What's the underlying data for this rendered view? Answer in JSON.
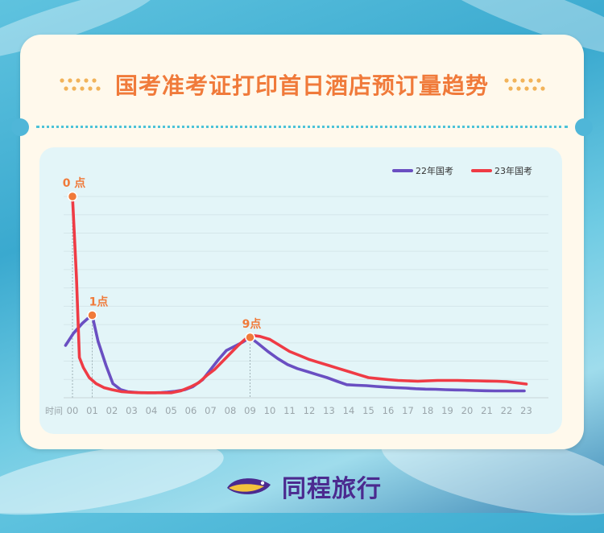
{
  "header": {
    "title": "国考准考证打印首日酒店预订量趋势"
  },
  "brand": {
    "name": "同程旅行"
  },
  "colors": {
    "series_22": "#6a4fc2",
    "series_23": "#ef3b45",
    "annotation": "#f07a3a",
    "title": "#f07a3a",
    "brand": "#4b2a8f"
  },
  "chart_data": {
    "type": "line",
    "title": "",
    "xlabel": "时间",
    "ylabel": "",
    "ylim": [
      0,
      100
    ],
    "grid": true,
    "legend_position": "top-right",
    "categories": [
      "00",
      "01",
      "02",
      "03",
      "04",
      "05",
      "06",
      "07",
      "08",
      "09",
      "10",
      "11",
      "12",
      "13",
      "14",
      "15",
      "16",
      "17",
      "18",
      "19",
      "20",
      "21",
      "22",
      "23"
    ],
    "x": [
      0,
      1,
      2,
      3,
      4,
      5,
      6,
      7,
      8,
      9,
      10,
      11,
      12,
      13,
      14,
      15,
      16,
      17,
      18,
      19,
      20,
      21,
      22,
      23
    ],
    "series": [
      {
        "name": "22年国考",
        "values": [
          25,
          37,
          6,
          2.5,
          2.5,
          3.5,
          5.5,
          16,
          25,
          29,
          21,
          15,
          12,
          8.5,
          6,
          5.5,
          5,
          4.5,
          4,
          3.8,
          3.5,
          3.2,
          3,
          3
        ],
        "fine_x": [
          -0.35,
          0.05,
          0.5,
          0.85,
          1,
          1.3,
          1.7,
          2.05,
          2.45,
          2.8,
          3.3,
          3.8,
          4.2,
          4.5,
          4.8,
          5.2,
          5.7,
          6.1,
          6.6,
          7,
          7.4,
          7.8,
          8.2,
          8.6,
          9,
          9.4,
          9.9,
          10.4,
          10.9,
          11.4,
          11.9,
          12.4,
          12.9,
          13.4,
          13.9,
          14.4,
          14.9,
          15.4,
          15.9,
          16.4,
          16.9,
          17.4,
          17.9,
          18.4,
          18.9,
          19.4,
          19.9,
          20.4,
          20.9,
          21.4,
          21.9,
          22.4,
          22.9
        ],
        "fine_y": [
          26,
          32,
          37,
          40,
          41,
          28,
          16,
          7,
          4,
          3,
          2.6,
          2.5,
          2.5,
          2.6,
          2.8,
          3.2,
          4,
          5.5,
          9,
          14,
          19,
          23.5,
          25.5,
          27.5,
          30,
          27,
          23,
          19.5,
          16.5,
          14.5,
          13,
          11.5,
          10,
          8.2,
          6.5,
          6.2,
          6,
          5.6,
          5.3,
          5,
          4.8,
          4.5,
          4.3,
          4.2,
          4,
          3.9,
          3.8,
          3.6,
          3.5,
          3.4,
          3.4,
          3.4,
          3.4
        ]
      },
      {
        "name": "23年国考",
        "values": [
          100,
          14,
          4,
          2.5,
          2.5,
          2.5,
          6,
          14,
          22,
          30,
          28,
          21,
          18,
          14,
          10,
          8.5,
          8,
          7.5,
          8,
          8,
          8,
          7.8,
          7.5,
          5.5
        ],
        "fine_x": [
          0,
          0.2,
          0.35,
          0.55,
          0.85,
          1.2,
          1.6,
          2,
          2.5,
          3,
          3.5,
          4,
          4.5,
          5,
          5.5,
          6,
          6.4,
          6.8,
          7.2,
          7.6,
          8,
          8.4,
          8.8,
          9.1,
          9.5,
          10,
          10.5,
          11,
          11.5,
          12,
          12.5,
          13,
          13.5,
          14,
          14.5,
          15,
          15.5,
          16,
          16.5,
          17,
          17.5,
          18,
          18.5,
          19,
          19.5,
          20,
          20.5,
          21,
          21.5,
          22,
          22.5,
          23
        ],
        "fine_y": [
          100,
          60,
          20,
          15,
          10,
          7,
          5,
          4,
          3,
          2.7,
          2.5,
          2.5,
          2.5,
          2.5,
          3.5,
          5.5,
          7.5,
          11,
          14,
          18,
          22,
          26,
          29.5,
          31,
          30.5,
          29,
          26,
          23,
          21,
          19,
          17.5,
          16,
          14.5,
          13,
          11.5,
          10,
          9.5,
          9,
          8.6,
          8.4,
          8.2,
          8.4,
          8.6,
          8.6,
          8.6,
          8.5,
          8.4,
          8.3,
          8.2,
          8,
          7.4,
          6.8
        ]
      }
    ],
    "annotations": [
      {
        "label": "0 点",
        "x": 0,
        "y": 100
      },
      {
        "label": "1点",
        "x": 1,
        "y": 41
      },
      {
        "label": "9点",
        "x": 9,
        "y": 30
      }
    ]
  }
}
